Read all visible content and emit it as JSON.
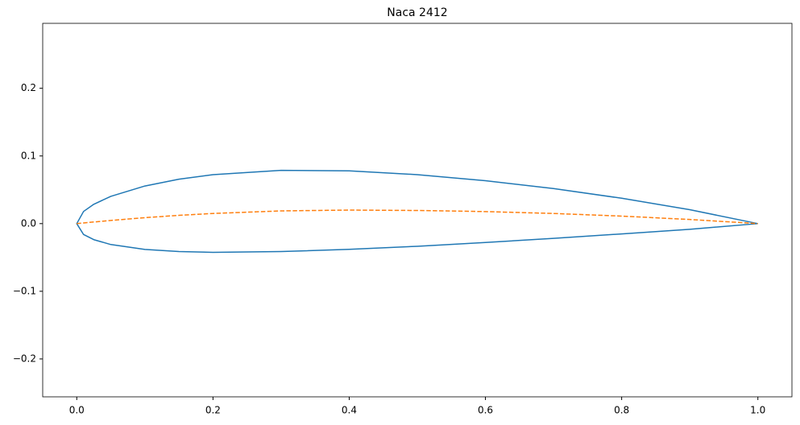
{
  "chart_data": {
    "type": "line",
    "title": "Naca 2412",
    "series": [
      {
        "color": "#1f77b4",
        "dash": false,
        "x": [
          1.0,
          0.9,
          0.8,
          0.7,
          0.6,
          0.5,
          0.4,
          0.3,
          0.2,
          0.15,
          0.1,
          0.05,
          0.025,
          0.01,
          0.0,
          0.01,
          0.025,
          0.05,
          0.1,
          0.15,
          0.2,
          0.3,
          0.4,
          0.5,
          0.6,
          0.7,
          0.8,
          0.9,
          1.0
        ],
        "values": [
          0.0,
          0.0206,
          0.0375,
          0.0518,
          0.0634,
          0.0724,
          0.078,
          0.0788,
          0.0724,
          0.0656,
          0.0556,
          0.0403,
          0.0286,
          0.018,
          0.0,
          -0.0161,
          -0.0237,
          -0.0309,
          -0.0381,
          -0.0413,
          -0.0424,
          -0.0413,
          -0.038,
          -0.0335,
          -0.0279,
          -0.0218,
          -0.0152,
          -0.0084,
          0.0
        ]
      },
      {
        "color": "#ff7f0e",
        "dash": true,
        "x": [
          0.0,
          0.01,
          0.025,
          0.05,
          0.1,
          0.15,
          0.2,
          0.3,
          0.4,
          0.5,
          0.6,
          0.7,
          0.8,
          0.9,
          1.0
        ],
        "values": [
          0.0,
          0.001,
          0.0024,
          0.0047,
          0.0088,
          0.0122,
          0.015,
          0.0188,
          0.02,
          0.0194,
          0.0178,
          0.015,
          0.0111,
          0.0061,
          0.0
        ]
      }
    ],
    "xlim": [
      -0.05,
      1.05
    ],
    "ylim": [
      -0.256,
      0.296
    ],
    "xticks": [
      {
        "value": 0,
        "label": "0.0"
      },
      {
        "value": 0.2,
        "label": "0.2"
      },
      {
        "value": 0.4,
        "label": "0.4"
      },
      {
        "value": 0.6,
        "label": "0.6"
      },
      {
        "value": 0.8,
        "label": "0.8"
      },
      {
        "value": 1,
        "label": "1.0"
      }
    ],
    "yticks": [
      {
        "value": -0.2,
        "label": "−0.2"
      },
      {
        "value": -0.1,
        "label": "−0.1"
      },
      {
        "value": 0,
        "label": "0.0"
      },
      {
        "value": 0.1,
        "label": "0.1"
      },
      {
        "value": 0.2,
        "label": "0.2"
      }
    ],
    "grid": false
  }
}
